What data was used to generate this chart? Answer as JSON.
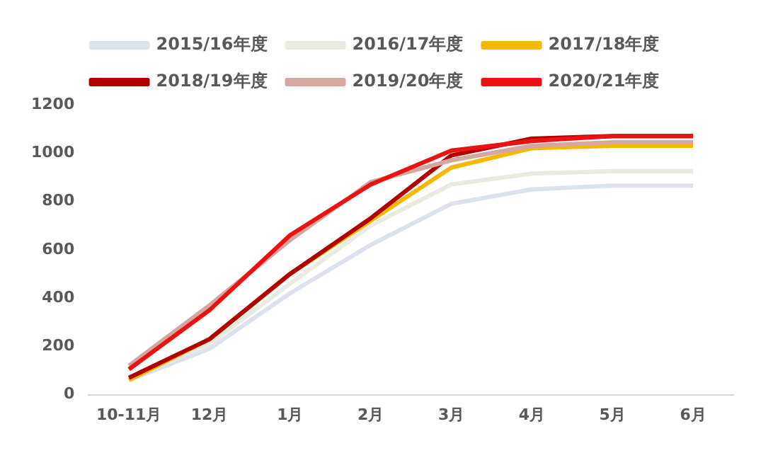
{
  "chart_data": {
    "type": "line",
    "categories": [
      "10-11月",
      "12月",
      "1月",
      "2月",
      "3月",
      "4月",
      "5月",
      "6月"
    ],
    "series": [
      {
        "name": "2015/16年度",
        "color": "#dce3ee",
        "values": [
          60,
          190,
          420,
          620,
          790,
          850,
          865,
          865
        ]
      },
      {
        "name": "2016/17年度",
        "color": "#e8ebdf",
        "values": [
          65,
          210,
          460,
          700,
          870,
          915,
          925,
          925
        ]
      },
      {
        "name": "2017/18年度",
        "color": "#f5b800",
        "values": [
          60,
          230,
          500,
          720,
          940,
          1020,
          1030,
          1030
        ]
      },
      {
        "name": "2018/19年度",
        "color": "#b00000",
        "values": [
          70,
          230,
          500,
          730,
          990,
          1060,
          1070,
          1070
        ]
      },
      {
        "name": "2019/20年度",
        "color": "#d4a8a0",
        "values": [
          120,
          370,
          640,
          880,
          970,
          1030,
          1045,
          1045
        ]
      },
      {
        "name": "2020/21年度",
        "color": "#ee1111",
        "values": [
          105,
          350,
          660,
          870,
          1010,
          1050,
          1070,
          1070
        ]
      }
    ],
    "ylim": [
      0,
      1200
    ],
    "yticks": [
      0,
      200,
      400,
      600,
      800,
      1000,
      1200
    ],
    "grid": false,
    "legend": "top",
    "marker": "none",
    "line_style": "solid"
  }
}
